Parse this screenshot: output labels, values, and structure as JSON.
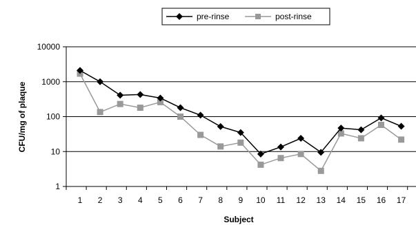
{
  "chart_data": {
    "type": "line",
    "xlabel": "Subject",
    "ylabel": "CFU/mg of plaque",
    "yscale": "log",
    "ylim": [
      1,
      10000
    ],
    "yticks": [
      1,
      10,
      100,
      1000,
      10000
    ],
    "ytick_labels": [
      "1",
      "10",
      "100",
      "1000",
      "10000"
    ],
    "grid": "horizontal major gridlines",
    "legend_position": "top",
    "categories": [
      "1",
      "2",
      "3",
      "4",
      "5",
      "6",
      "7",
      "8",
      "9",
      "10",
      "11",
      "12",
      "13",
      "14",
      "15",
      "16",
      "17"
    ],
    "series": [
      {
        "name": "pre-rinse",
        "color": "#000000",
        "marker": "diamond",
        "values": [
          2100,
          1000,
          410,
          430,
          340,
          180,
          110,
          52,
          35,
          8.5,
          13.5,
          24,
          9.5,
          47,
          42,
          92,
          53
        ]
      },
      {
        "name": "post-rinse",
        "color": "#999999",
        "marker": "square",
        "values": [
          1700,
          135,
          230,
          180,
          260,
          100,
          30,
          14,
          18,
          4.2,
          6.5,
          8.5,
          2.8,
          33,
          24,
          58,
          22
        ]
      }
    ]
  }
}
